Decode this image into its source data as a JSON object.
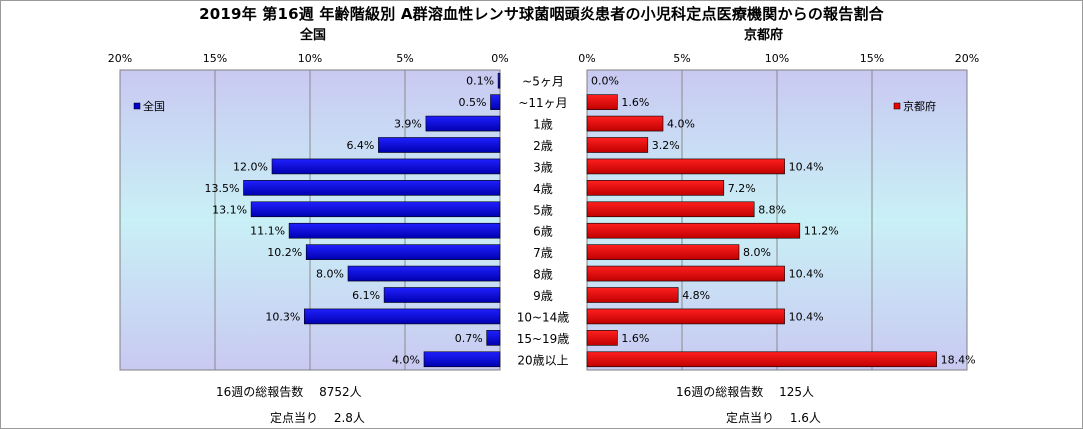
{
  "title": "2019年 第16週 年齢階級別 A群溶血性レンサ球菌咽頭炎患者の小児科定点医療機関からの報告割合",
  "charts": {
    "left_label": "全国",
    "right_label": "京都府",
    "tick_labels": [
      "0%",
      "5%",
      "10%",
      "15%",
      "20%"
    ]
  },
  "chart_data": [
    {
      "type": "bar",
      "orientation": "horizontal",
      "direction": "right-to-left",
      "title": "全国",
      "xlim": [
        0,
        20
      ],
      "unit": "%",
      "grid": true,
      "legend_position": "top-left",
      "categories": [
        "~5ヶ月",
        "~11ヶ月",
        "1歳",
        "2歳",
        "3歳",
        "4歳",
        "5歳",
        "6歳",
        "7歳",
        "8歳",
        "9歳",
        "10~14歳",
        "15~19歳",
        "20歳以上"
      ],
      "series": [
        {
          "name": "全国",
          "color": "#0000cc",
          "values": [
            0.1,
            0.5,
            3.9,
            6.4,
            12.0,
            13.5,
            13.1,
            11.1,
            10.2,
            8.0,
            6.1,
            10.3,
            0.7,
            4.0
          ],
          "labels": [
            "0.1%",
            "0.5%",
            "3.9%",
            "6.4%",
            "12.0%",
            "13.5%",
            "13.1%",
            "11.1%",
            "10.2%",
            "8.0%",
            "6.1%",
            "10.3%",
            "0.7%",
            "4.0%"
          ]
        }
      ]
    },
    {
      "type": "bar",
      "orientation": "horizontal",
      "direction": "left-to-right",
      "title": "京都府",
      "xlim": [
        0,
        20
      ],
      "unit": "%",
      "grid": true,
      "legend_position": "top-right",
      "categories": [
        "~5ヶ月",
        "~11ヶ月",
        "1歳",
        "2歳",
        "3歳",
        "4歳",
        "5歳",
        "6歳",
        "7歳",
        "8歳",
        "9歳",
        "10~14歳",
        "15~19歳",
        "20歳以上"
      ],
      "series": [
        {
          "name": "京都府",
          "color": "#ee0000",
          "values": [
            0.0,
            1.6,
            4.0,
            3.2,
            10.4,
            7.2,
            8.8,
            11.2,
            8.0,
            10.4,
            4.8,
            10.4,
            1.6,
            18.4
          ],
          "labels": [
            "0.0%",
            "1.6%",
            "4.0%",
            "3.2%",
            "10.4%",
            "7.2%",
            "8.8%",
            "11.2%",
            "8.0%",
            "10.4%",
            "4.8%",
            "10.4%",
            "1.6%",
            "18.4%"
          ]
        }
      ]
    }
  ],
  "category_labels": [
    "~5ヶ月",
    "~11ヶ月",
    "1歳",
    "2歳",
    "3歳",
    "4歳",
    "5歳",
    "6歳",
    "7歳",
    "8歳",
    "9歳",
    "10~14歳",
    "15~19歳",
    "20歳以上"
  ],
  "stats": {
    "national_total": "16週の総報告数　 8752人",
    "national_per": "定点当り　 2.8人",
    "kyoto_total": "16週の総報告数　 125人",
    "kyoto_per": "定点当り　 1.6人"
  }
}
